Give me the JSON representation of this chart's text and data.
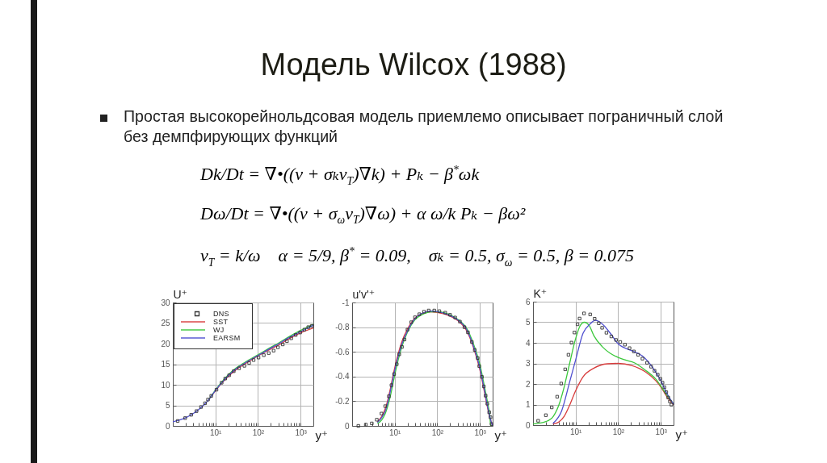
{
  "chart_data": [
    {
      "type": "other",
      "title": "Модель Wilcox (1988)",
      "subtitle": "Простая высокорейнольдсовая модель приемлемо описывает пограничный слой без демпфирующих функций",
      "annotations": [
        "Dk/Dt = ∇•((ν + σₖν$_{T}$)∇k) + Pₖ − β$^{*}$ωk",
        "Dω/Dt = ∇•((ν + σ$_{ω}$ν$_{T}$)∇ω) + α ω/k Pₖ − βω²",
        "ν$_{T}$ = k/ω    α = 5/9, β$^{*}$ = 0.09,    σₖ = 0.5, σ$_{ω}$ = 0.5, β = 0.075"
      ]
    },
    {
      "type": "line",
      "xlabel": "y⁺",
      "ylabel": "U⁺",
      "log": "x",
      "grid": true,
      "legend": "top left",
      "xlim": [
        1,
        2000
      ],
      "xticks": [
        {
          "value": 2,
          "label": null
        },
        {
          "value": 3,
          "label": null
        },
        {
          "value": 4,
          "label": null
        },
        {
          "value": 5,
          "label": null
        },
        {
          "value": 6,
          "label": null
        },
        {
          "value": 7,
          "label": null
        },
        {
          "value": 8,
          "label": null
        },
        {
          "value": 9,
          "label": null
        },
        {
          "value": 10,
          "label": "10¹"
        },
        {
          "value": 20,
          "label": null
        },
        {
          "value": 30,
          "label": null
        },
        {
          "value": 40,
          "label": null
        },
        {
          "value": 50,
          "label": null
        },
        {
          "value": 60,
          "label": null
        },
        {
          "value": 70,
          "label": null
        },
        {
          "value": 80,
          "label": null
        },
        {
          "value": 90,
          "label": null
        },
        {
          "value": 100,
          "label": "10²"
        },
        {
          "value": 200,
          "label": null
        },
        {
          "value": 300,
          "label": null
        },
        {
          "value": 400,
          "label": null
        },
        {
          "value": 500,
          "label": null
        },
        {
          "value": 600,
          "label": null
        },
        {
          "value": 700,
          "label": null
        },
        {
          "value": 800,
          "label": null
        },
        {
          "value": 900,
          "label": null
        },
        {
          "value": 1000,
          "label": "10³"
        }
      ],
      "ylim": [
        0,
        30
      ],
      "yticks": [
        0,
        5,
        10,
        15,
        20,
        25,
        30
      ],
      "series": [
        {
          "name": "DNS",
          "type": "scatter",
          "marker": "square",
          "color": "#333333",
          "x": [
            1.3,
            1.95,
            2.7,
            3.6,
            4.6,
            5.7,
            6.7,
            8,
            10.6,
            14,
            17,
            21,
            27,
            36,
            48,
            62,
            79,
            103,
            137,
            179,
            233,
            295,
            382,
            480,
            605,
            770,
            980,
            1230,
            1520,
            1850
          ],
          "values": [
            1.2,
            1.9,
            2.7,
            3.6,
            4.6,
            5.5,
            6.4,
            7.3,
            8.8,
            10.5,
            11.5,
            12.3,
            13.3,
            14.0,
            14.6,
            15.3,
            16.0,
            16.6,
            17.2,
            17.7,
            18.3,
            19.1,
            19.8,
            20.6,
            21.3,
            22.1,
            22.7,
            23.4,
            24.0,
            24.3
          ]
        },
        {
          "name": "SST",
          "color": "#d83c3c",
          "x": [
            7,
            10,
            15,
            20,
            30,
            50,
            100,
            200,
            300,
            500,
            1000,
            2000
          ],
          "values": [
            6.4,
            8.5,
            10.7,
            12.0,
            13.6,
            15.1,
            17.0,
            18.7,
            19.6,
            21.0,
            22.6,
            23.8
          ]
        },
        {
          "name": "WJ",
          "color": "#3cc83c",
          "x": [
            7,
            10,
            15,
            20,
            30,
            50,
            100,
            200,
            300,
            500,
            1000,
            2000
          ],
          "values": [
            6.4,
            8.7,
            11.0,
            12.4,
            14.0,
            15.5,
            17.3,
            19.1,
            20.1,
            21.5,
            23.2,
            24.7
          ]
        },
        {
          "name": "EARSM",
          "color": "#5050d0",
          "x": [
            1,
            2,
            3,
            5,
            7,
            10,
            15,
            20,
            30,
            50,
            100,
            200,
            300,
            500,
            1000,
            2000
          ],
          "values": [
            1.0,
            2.0,
            3.0,
            4.8,
            6.4,
            8.6,
            10.8,
            12.2,
            13.8,
            15.3,
            17.1,
            18.9,
            19.9,
            21.3,
            22.9,
            24.5
          ]
        }
      ]
    },
    {
      "type": "line",
      "xlabel": "y⁺",
      "ylabel": "u'v'⁺",
      "log": "x",
      "grid": true,
      "xlim": [
        1,
        2000
      ],
      "xticks": [
        {
          "value": 2,
          "label": null
        },
        {
          "value": 3,
          "label": null
        },
        {
          "value": 4,
          "label": null
        },
        {
          "value": 5,
          "label": null
        },
        {
          "value": 6,
          "label": null
        },
        {
          "value": 7,
          "label": null
        },
        {
          "value": 8,
          "label": null
        },
        {
          "value": 9,
          "label": null
        },
        {
          "value": 10,
          "label": "10¹"
        },
        {
          "value": 20,
          "label": null
        },
        {
          "value": 30,
          "label": null
        },
        {
          "value": 40,
          "label": null
        },
        {
          "value": 50,
          "label": null
        },
        {
          "value": 60,
          "label": null
        },
        {
          "value": 70,
          "label": null
        },
        {
          "value": 80,
          "label": null
        },
        {
          "value": 90,
          "label": null
        },
        {
          "value": 100,
          "label": "10²"
        },
        {
          "value": 200,
          "label": null
        },
        {
          "value": 300,
          "label": null
        },
        {
          "value": 400,
          "label": null
        },
        {
          "value": 500,
          "label": null
        },
        {
          "value": 600,
          "label": null
        },
        {
          "value": 700,
          "label": null
        },
        {
          "value": 800,
          "label": null
        },
        {
          "value": 900,
          "label": null
        },
        {
          "value": 1000,
          "label": "10³"
        }
      ],
      "ylim": [
        0,
        -1
      ],
      "yticks": [
        0,
        -0.2,
        -0.4,
        -0.6,
        -0.8,
        -1
      ],
      "series": [
        {
          "type": "scatter",
          "marker": "square",
          "color": "#333333",
          "x": [
            1.4,
            2.1,
            2.9,
            3.8,
            4.9,
            6,
            7.3,
            8.4,
            9.7,
            11.2,
            12.8,
            14.8,
            17,
            20,
            24.5,
            30,
            38,
            49,
            63,
            85,
            112,
            154,
            200,
            263,
            340,
            435,
            525,
            650,
            760,
            890,
            970,
            1120,
            1240,
            1370,
            1500,
            1660,
            1780,
            1890
          ],
          "values": [
            0,
            -0.01,
            -0.02,
            -0.05,
            -0.1,
            -0.16,
            -0.24,
            -0.33,
            -0.42,
            -0.5,
            -0.58,
            -0.64,
            -0.7,
            -0.78,
            -0.84,
            -0.88,
            -0.905,
            -0.925,
            -0.935,
            -0.935,
            -0.93,
            -0.917,
            -0.9,
            -0.878,
            -0.845,
            -0.8,
            -0.758,
            -0.68,
            -0.615,
            -0.55,
            -0.485,
            -0.397,
            -0.32,
            -0.245,
            -0.18,
            -0.11,
            -0.07,
            -0.015
          ]
        },
        {
          "color": "#d83c3c",
          "x": [
            4,
            5,
            6,
            7,
            8,
            10,
            12,
            15,
            20,
            30,
            50,
            70,
            100,
            200,
            300,
            500,
            700,
            1000,
            1300,
            1600,
            1900,
            2000
          ],
          "values": [
            -0.035,
            -0.08,
            -0.14,
            -0.22,
            -0.31,
            -0.47,
            -0.58,
            -0.69,
            -0.785,
            -0.875,
            -0.915,
            -0.925,
            -0.92,
            -0.89,
            -0.855,
            -0.765,
            -0.64,
            -0.455,
            -0.265,
            -0.11,
            -0.02,
            0
          ]
        },
        {
          "color": "#3cc83c",
          "x": [
            4,
            5,
            6,
            7,
            8,
            10,
            12,
            15,
            20,
            30,
            50,
            70,
            100,
            200,
            300,
            500,
            700,
            1000,
            1300,
            1600,
            1700,
            1800,
            2000
          ],
          "values": [
            -0.02,
            -0.05,
            -0.1,
            -0.17,
            -0.25,
            -0.41,
            -0.53,
            -0.65,
            -0.76,
            -0.86,
            -0.91,
            -0.925,
            -0.925,
            -0.9,
            -0.865,
            -0.785,
            -0.67,
            -0.5,
            -0.31,
            -0.15,
            -0.1,
            0,
            0
          ]
        },
        {
          "color": "#5050d0",
          "x": [
            4,
            5,
            6,
            7,
            8,
            10,
            12,
            15,
            20,
            30,
            50,
            70,
            100,
            200,
            300,
            500,
            700,
            1000,
            1300,
            1600,
            1900,
            2000
          ],
          "values": [
            -0.03,
            -0.07,
            -0.12,
            -0.2,
            -0.29,
            -0.45,
            -0.56,
            -0.67,
            -0.77,
            -0.87,
            -0.92,
            -0.93,
            -0.925,
            -0.895,
            -0.86,
            -0.775,
            -0.65,
            -0.47,
            -0.28,
            -0.12,
            -0.02,
            0
          ]
        }
      ]
    },
    {
      "type": "line",
      "xlabel": "y⁺",
      "ylabel": "K⁺",
      "log": "x",
      "grid": true,
      "xlim": [
        1,
        2000
      ],
      "xticks": [
        {
          "value": 2,
          "label": null
        },
        {
          "value": 3,
          "label": null
        },
        {
          "value": 4,
          "label": null
        },
        {
          "value": 5,
          "label": null
        },
        {
          "value": 6,
          "label": null
        },
        {
          "value": 7,
          "label": null
        },
        {
          "value": 8,
          "label": null
        },
        {
          "value": 9,
          "label": null
        },
        {
          "value": 10,
          "label": "10¹"
        },
        {
          "value": 20,
          "label": null
        },
        {
          "value": 30,
          "label": null
        },
        {
          "value": 40,
          "label": null
        },
        {
          "value": 50,
          "label": null
        },
        {
          "value": 60,
          "label": null
        },
        {
          "value": 70,
          "label": null
        },
        {
          "value": 80,
          "label": null
        },
        {
          "value": 90,
          "label": null
        },
        {
          "value": 100,
          "label": "10²"
        },
        {
          "value": 200,
          "label": null
        },
        {
          "value": 300,
          "label": null
        },
        {
          "value": 400,
          "label": null
        },
        {
          "value": 500,
          "label": null
        },
        {
          "value": 600,
          "label": null
        },
        {
          "value": 700,
          "label": null
        },
        {
          "value": 800,
          "label": null
        },
        {
          "value": 900,
          "label": null
        },
        {
          "value": 1000,
          "label": "10³"
        }
      ],
      "ylim": [
        0,
        6
      ],
      "yticks": [
        0,
        1,
        2,
        3,
        4,
        5,
        6
      ],
      "series": [
        {
          "type": "scatter",
          "marker": "square",
          "color": "#333333",
          "x": [
            1.32,
            2,
            2.75,
            3.7,
            4.6,
            5.7,
            6.8,
            8,
            9.4,
            11.1,
            12.4,
            15.8,
            22,
            28,
            35,
            42,
            53,
            69,
            89,
            112,
            144,
            185,
            234,
            295,
            372,
            478,
            595,
            715,
            850,
            980,
            1100,
            1220,
            1350,
            1500,
            1640,
            1780
          ],
          "values": [
            0.21,
            0.48,
            0.86,
            1.38,
            2.02,
            2.71,
            3.42,
            4.01,
            4.5,
            4.9,
            5.18,
            5.43,
            5.38,
            5.17,
            4.95,
            4.73,
            4.49,
            4.31,
            4.14,
            4.04,
            3.91,
            3.74,
            3.58,
            3.42,
            3.23,
            3.03,
            2.84,
            2.64,
            2.45,
            2.25,
            2.06,
            1.84,
            1.6,
            1.34,
            1.15,
            0.99
          ]
        },
        {
          "color": "#d83c3c",
          "x": [
            3,
            4,
            5.4,
            7,
            10,
            15,
            27,
            56,
            100,
            207,
            430,
            770,
            1030,
            1400,
            2000
          ],
          "values": [
            0.05,
            0.15,
            0.43,
            0.9,
            1.67,
            2.35,
            2.77,
            2.98,
            3.0,
            2.9,
            2.6,
            2.15,
            1.82,
            1.38,
            1.0
          ]
        },
        {
          "color": "#3cc83c",
          "x": [
            1,
            2,
            3,
            4,
            5.4,
            7.3,
            10,
            13,
            16,
            20.6,
            27,
            42,
            65,
            100,
            150,
            240,
            430,
            770,
            1400,
            2000
          ],
          "values": [
            0.05,
            0.17,
            0.43,
            0.95,
            1.86,
            3.03,
            4.2,
            4.86,
            5.0,
            4.86,
            4.34,
            3.82,
            3.49,
            3.29,
            3.16,
            3.03,
            2.68,
            2.23,
            1.45,
            1.04
          ]
        },
        {
          "color": "#5050d0",
          "x": [
            3,
            4.7,
            7.3,
            10,
            15,
            22,
            29,
            42,
            65,
            100,
            207,
            370,
            660,
            1030,
            1400,
            2000
          ],
          "values": [
            0.1,
            0.69,
            2.12,
            3.16,
            4.47,
            4.92,
            5.09,
            4.92,
            4.47,
            3.95,
            3.62,
            3.36,
            2.77,
            2.12,
            1.54,
            1.02
          ]
        }
      ]
    }
  ]
}
